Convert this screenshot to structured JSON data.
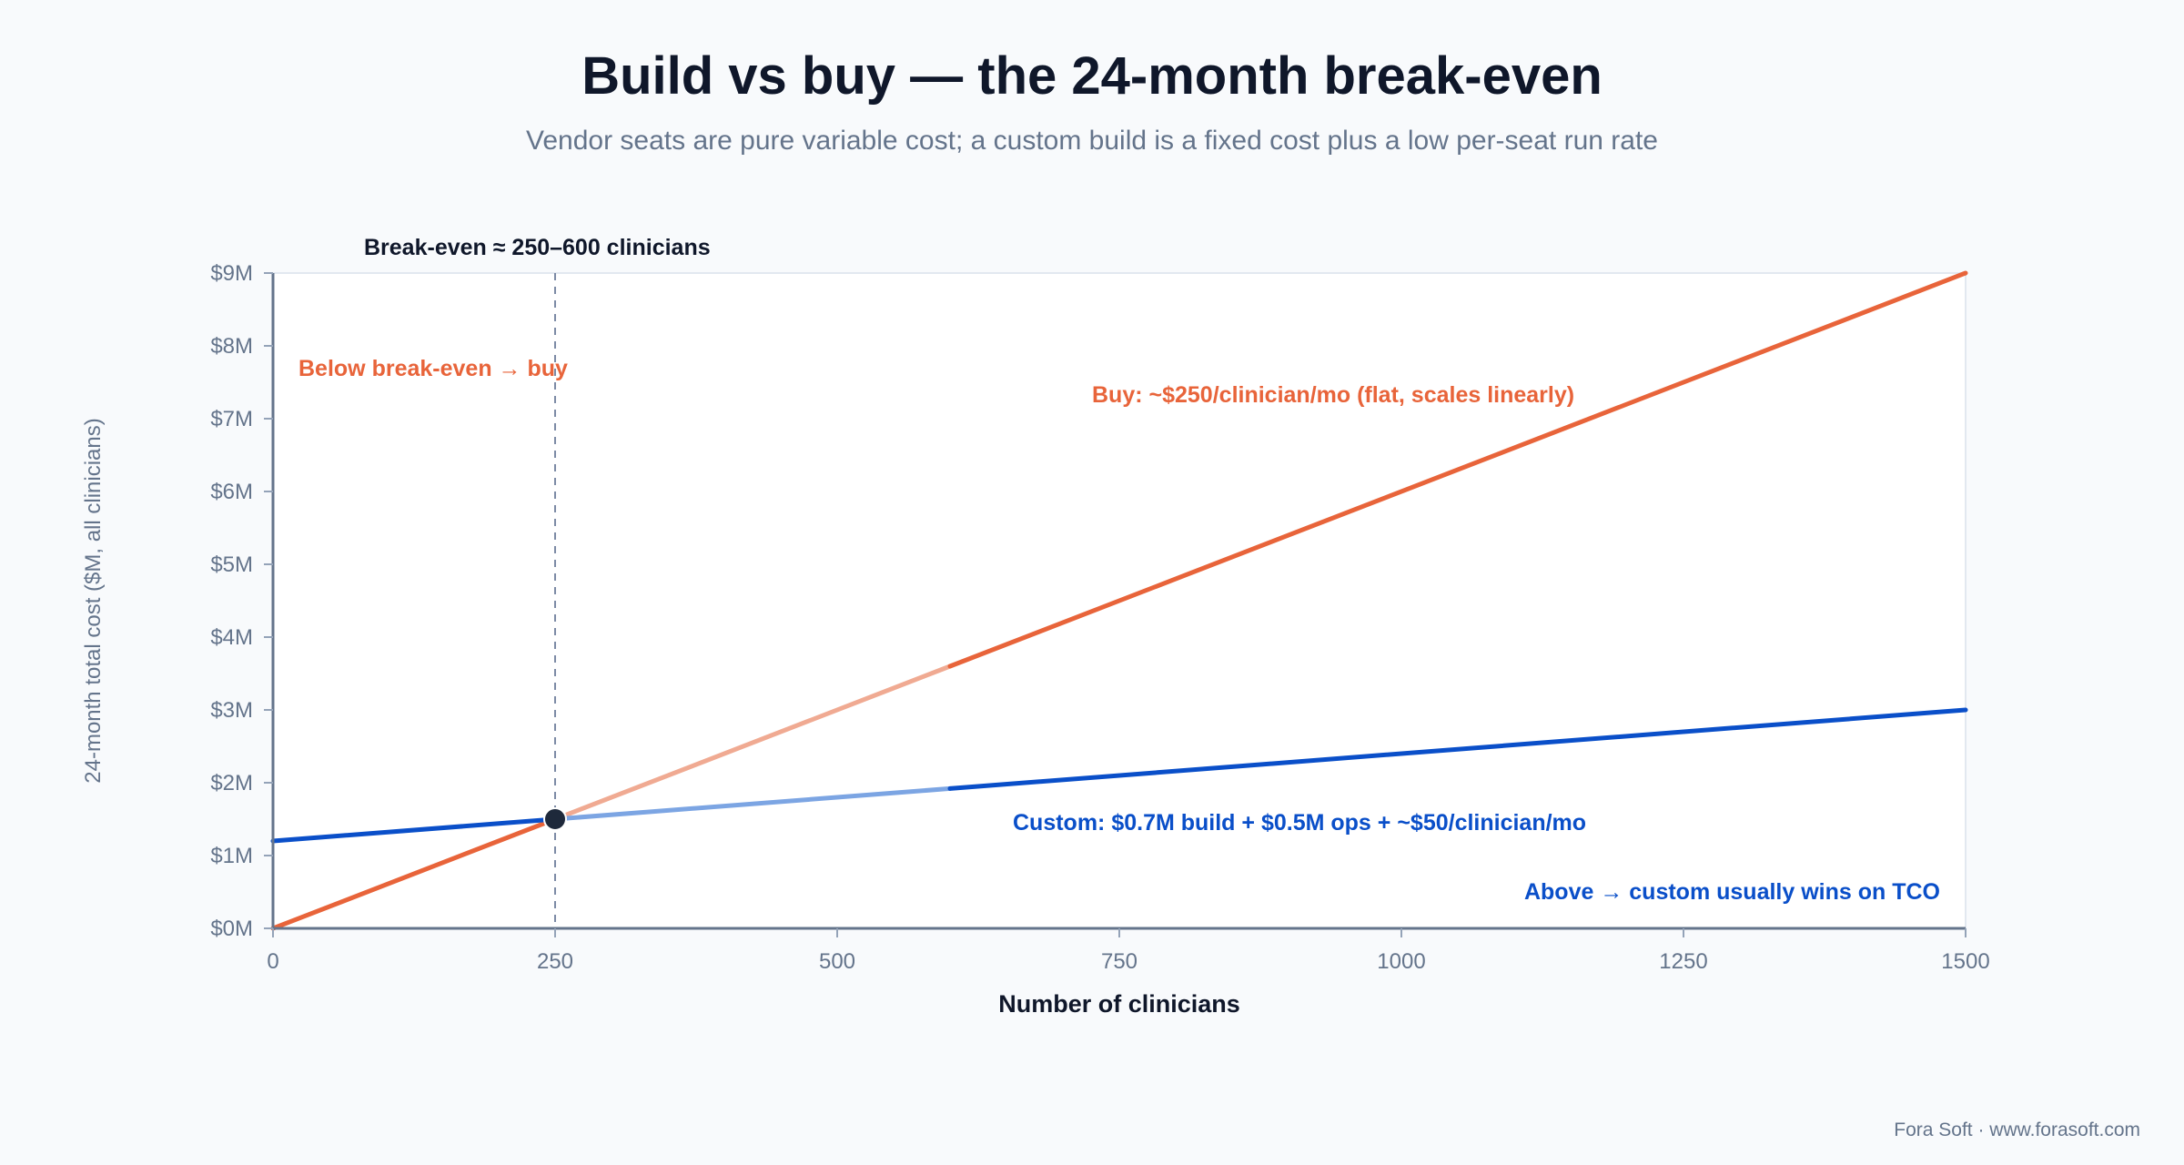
{
  "chart_data": {
    "type": "line",
    "title": "Build vs buy — the 24-month break-even",
    "subtitle": "Vendor seats are pure variable cost; a custom build is a fixed cost plus a low per-seat run rate",
    "xlabel": "Number of clinicians",
    "ylabel": "24-month total cost ($M, all clinicians)",
    "xlim": [
      0,
      1500
    ],
    "ylim": [
      0,
      9
    ],
    "x_ticks": [
      "0",
      "250",
      "500",
      "750",
      "1000",
      "1250",
      "1500"
    ],
    "x_tick_values": [
      0,
      250,
      500,
      750,
      1000,
      1250,
      1500
    ],
    "y_ticks": [
      "$0M",
      "$1M",
      "$2M",
      "$3M",
      "$4M",
      "$5M",
      "$6M",
      "$7M",
      "$8M",
      "$9M"
    ],
    "y_tick_values": [
      0,
      1,
      2,
      3,
      4,
      5,
      6,
      7,
      8,
      9
    ],
    "grid": false,
    "break_even_band": [
      250,
      600
    ],
    "series": [
      {
        "name": "Buy",
        "color": "#e8643a",
        "faded_color": "#f0aa92",
        "x": [
          0,
          250,
          600,
          1500
        ],
        "y": [
          0,
          1.5,
          3.6,
          9.0
        ]
      },
      {
        "name": "Custom",
        "color": "#0a4fc9",
        "faded_color": "#7ca5e3",
        "x": [
          0,
          250,
          600,
          1500
        ],
        "y": [
          1.2,
          1.5,
          1.92,
          3.0
        ]
      }
    ],
    "break_even_point": {
      "x": 250,
      "y": 1.5
    },
    "annotations": {
      "break_even": "Break-even ≈ 250–600 clinicians",
      "below": "Below break-even → buy",
      "buy": "Buy: ~$250/clinician/mo (flat, scales linearly)",
      "custom": "Custom: $0.7M build + $0.5M ops + ~$50/clinician/mo",
      "above": "Above → custom usually wins on TCO"
    },
    "colors": {
      "buy": "#e8643a",
      "custom": "#0a4fc9",
      "marker": "#1e293b",
      "divider": "#7c8aa5"
    }
  },
  "footer": {
    "credit": "Fora Soft · www.forasoft.com"
  }
}
